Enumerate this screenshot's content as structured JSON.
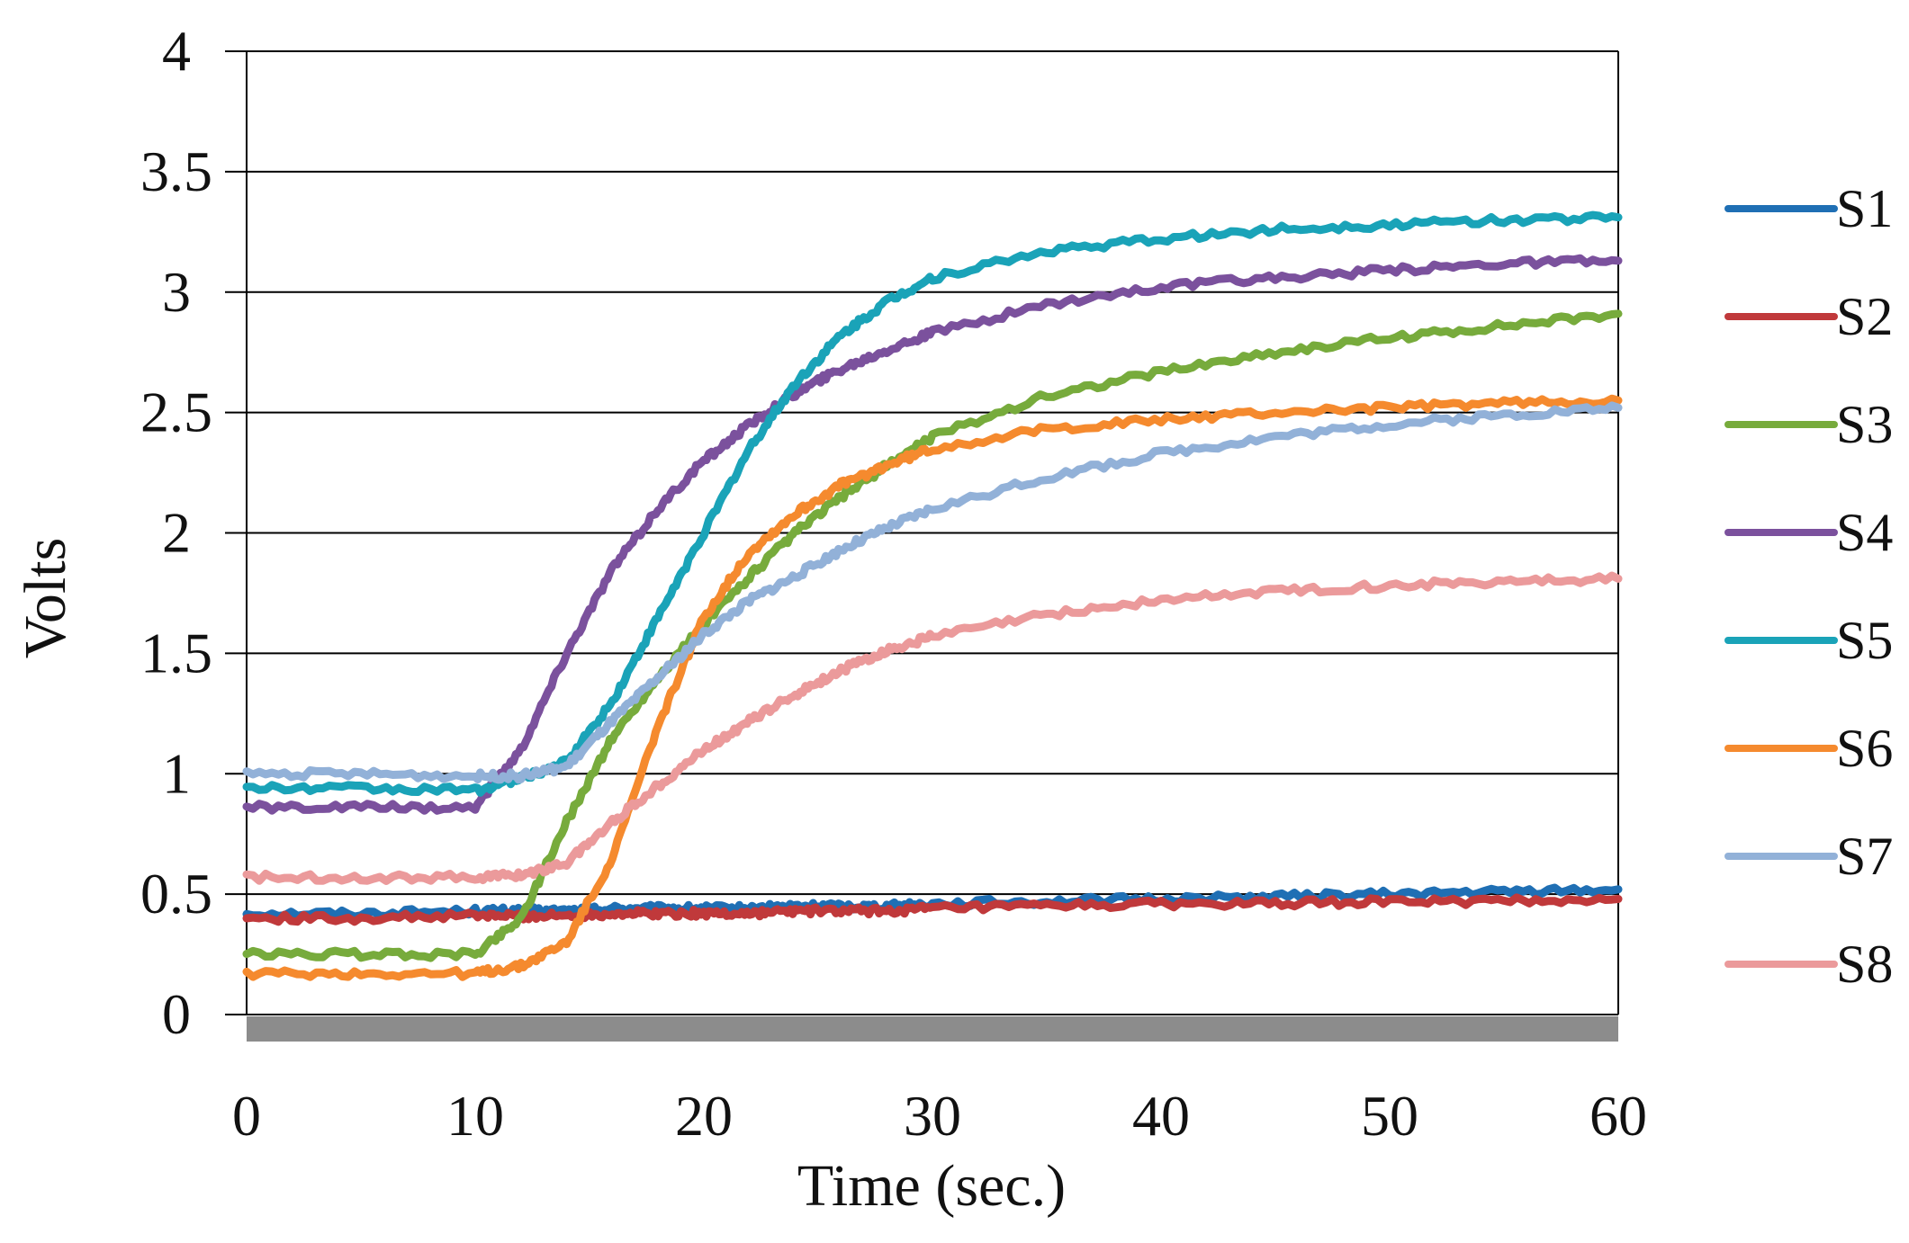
{
  "chart_data": {
    "type": "line",
    "title": "",
    "xlabel": "Time (sec.)",
    "ylabel": "Volts",
    "xlim": [
      0,
      60
    ],
    "ylim": [
      0,
      4
    ],
    "xticks": [
      0,
      10,
      20,
      30,
      40,
      50,
      60
    ],
    "yticks": [
      0,
      0.5,
      1,
      1.5,
      2,
      2.5,
      3,
      3.5,
      4
    ],
    "ytick_labels": [
      "0",
      "0.5",
      "1",
      "1.5",
      "2",
      "2.5",
      "3",
      "3.5",
      "4"
    ],
    "xtick_labels": [
      "0",
      "10",
      "20",
      "30",
      "40",
      "50",
      "60"
    ],
    "grid": true,
    "legend_position": "right",
    "x": [
      0,
      5,
      10,
      12,
      14,
      16,
      18,
      20,
      22,
      24,
      26,
      28,
      30,
      35,
      40,
      45,
      50,
      55,
      60
    ],
    "series": [
      {
        "name": "S1",
        "color": "#1f6fb4",
        "values": [
          0.42,
          0.42,
          0.43,
          0.43,
          0.43,
          0.44,
          0.44,
          0.44,
          0.44,
          0.45,
          0.45,
          0.45,
          0.46,
          0.47,
          0.48,
          0.49,
          0.5,
          0.51,
          0.52
        ]
      },
      {
        "name": "S2",
        "color": "#c0393b",
        "values": [
          0.4,
          0.4,
          0.41,
          0.41,
          0.41,
          0.42,
          0.42,
          0.42,
          0.42,
          0.43,
          0.43,
          0.43,
          0.44,
          0.45,
          0.46,
          0.46,
          0.47,
          0.47,
          0.48
        ]
      },
      {
        "name": "S3",
        "color": "#77ab3c",
        "values": [
          0.25,
          0.25,
          0.25,
          0.4,
          0.8,
          1.15,
          1.4,
          1.62,
          1.82,
          2.0,
          2.15,
          2.28,
          2.4,
          2.57,
          2.67,
          2.75,
          2.81,
          2.86,
          2.91
        ]
      },
      {
        "name": "S4",
        "color": "#7b519d",
        "values": [
          0.86,
          0.86,
          0.86,
          1.1,
          1.5,
          1.85,
          2.1,
          2.3,
          2.45,
          2.58,
          2.68,
          2.76,
          2.83,
          2.95,
          3.02,
          3.06,
          3.09,
          3.12,
          3.13
        ]
      },
      {
        "name": "S5",
        "color": "#1aa3b8",
        "values": [
          0.94,
          0.94,
          0.93,
          0.98,
          1.05,
          1.3,
          1.65,
          2.0,
          2.35,
          2.62,
          2.82,
          2.96,
          3.06,
          3.17,
          3.22,
          3.26,
          3.28,
          3.3,
          3.31
        ]
      },
      {
        "name": "S6",
        "color": "#f58a2e",
        "values": [
          0.17,
          0.17,
          0.17,
          0.2,
          0.3,
          0.65,
          1.2,
          1.65,
          1.92,
          2.08,
          2.2,
          2.28,
          2.35,
          2.43,
          2.47,
          2.5,
          2.52,
          2.54,
          2.55
        ]
      },
      {
        "name": "S7",
        "color": "#92b1d8",
        "values": [
          1.0,
          1.0,
          0.99,
          0.99,
          1.03,
          1.22,
          1.4,
          1.58,
          1.72,
          1.82,
          1.93,
          2.02,
          2.1,
          2.23,
          2.33,
          2.4,
          2.45,
          2.49,
          2.52
        ]
      },
      {
        "name": "S8",
        "color": "#eb9a9b",
        "values": [
          0.57,
          0.57,
          0.57,
          0.58,
          0.63,
          0.8,
          0.95,
          1.1,
          1.22,
          1.33,
          1.43,
          1.51,
          1.57,
          1.66,
          1.72,
          1.76,
          1.78,
          1.8,
          1.81
        ]
      }
    ]
  }
}
